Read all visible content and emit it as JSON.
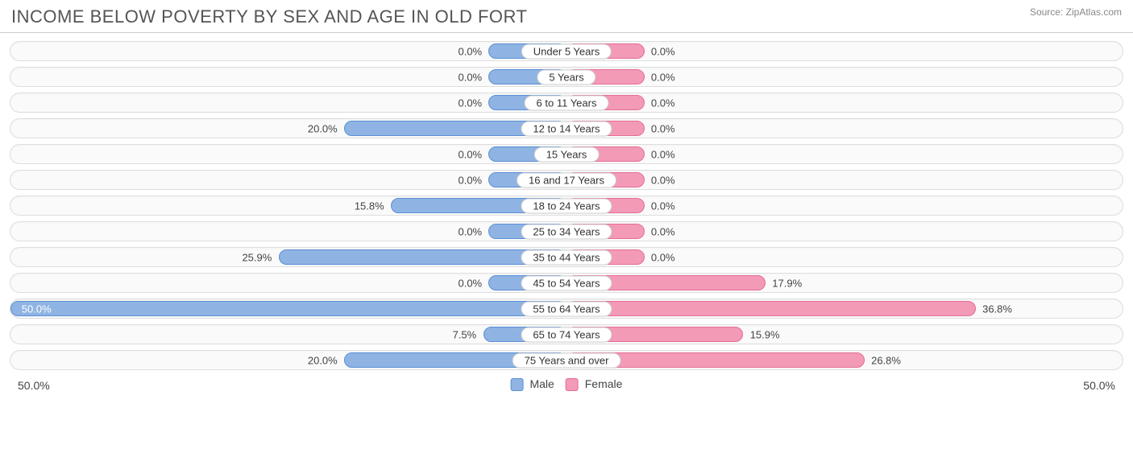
{
  "title": "INCOME BELOW POVERTY BY SEX AND AGE IN OLD FORT",
  "source": "Source: ZipAtlas.com",
  "chart": {
    "type": "diverging-bar",
    "axis_max": 50.0,
    "axis_label_left": "50.0%",
    "axis_label_right": "50.0%",
    "male": {
      "name": "Male",
      "fill": "#8fb4e3",
      "stroke": "#5a8fd4",
      "min_bar_pct": 7.0
    },
    "female": {
      "name": "Female",
      "fill": "#f39ab6",
      "stroke": "#e46f97",
      "min_bar_pct": 7.0
    },
    "track": {
      "bg": "#fafafa",
      "border": "#dddddd"
    },
    "label_style": {
      "fontsize": 13,
      "color": "#333333",
      "bg": "#ffffff",
      "border": "#cccccc"
    },
    "title_style": {
      "fontsize": 22,
      "color": "#555555"
    },
    "source_style": {
      "fontsize": 12,
      "color": "#888888"
    },
    "rows": [
      {
        "category": "Under 5 Years",
        "male": 0.0,
        "female": 0.0,
        "male_label": "0.0%",
        "female_label": "0.0%"
      },
      {
        "category": "5 Years",
        "male": 0.0,
        "female": 0.0,
        "male_label": "0.0%",
        "female_label": "0.0%"
      },
      {
        "category": "6 to 11 Years",
        "male": 0.0,
        "female": 0.0,
        "male_label": "0.0%",
        "female_label": "0.0%"
      },
      {
        "category": "12 to 14 Years",
        "male": 20.0,
        "female": 0.0,
        "male_label": "20.0%",
        "female_label": "0.0%"
      },
      {
        "category": "15 Years",
        "male": 0.0,
        "female": 0.0,
        "male_label": "0.0%",
        "female_label": "0.0%"
      },
      {
        "category": "16 and 17 Years",
        "male": 0.0,
        "female": 0.0,
        "male_label": "0.0%",
        "female_label": "0.0%"
      },
      {
        "category": "18 to 24 Years",
        "male": 15.8,
        "female": 0.0,
        "male_label": "15.8%",
        "female_label": "0.0%"
      },
      {
        "category": "25 to 34 Years",
        "male": 0.0,
        "female": 0.0,
        "male_label": "0.0%",
        "female_label": "0.0%"
      },
      {
        "category": "35 to 44 Years",
        "male": 25.9,
        "female": 0.0,
        "male_label": "25.9%",
        "female_label": "0.0%"
      },
      {
        "category": "45 to 54 Years",
        "male": 0.0,
        "female": 17.9,
        "male_label": "0.0%",
        "female_label": "17.9%"
      },
      {
        "category": "55 to 64 Years",
        "male": 50.0,
        "female": 36.8,
        "male_label": "50.0%",
        "female_label": "36.8%"
      },
      {
        "category": "65 to 74 Years",
        "male": 7.5,
        "female": 15.9,
        "male_label": "7.5%",
        "female_label": "15.9%"
      },
      {
        "category": "75 Years and over",
        "male": 20.0,
        "female": 26.8,
        "male_label": "20.0%",
        "female_label": "26.8%"
      }
    ]
  }
}
